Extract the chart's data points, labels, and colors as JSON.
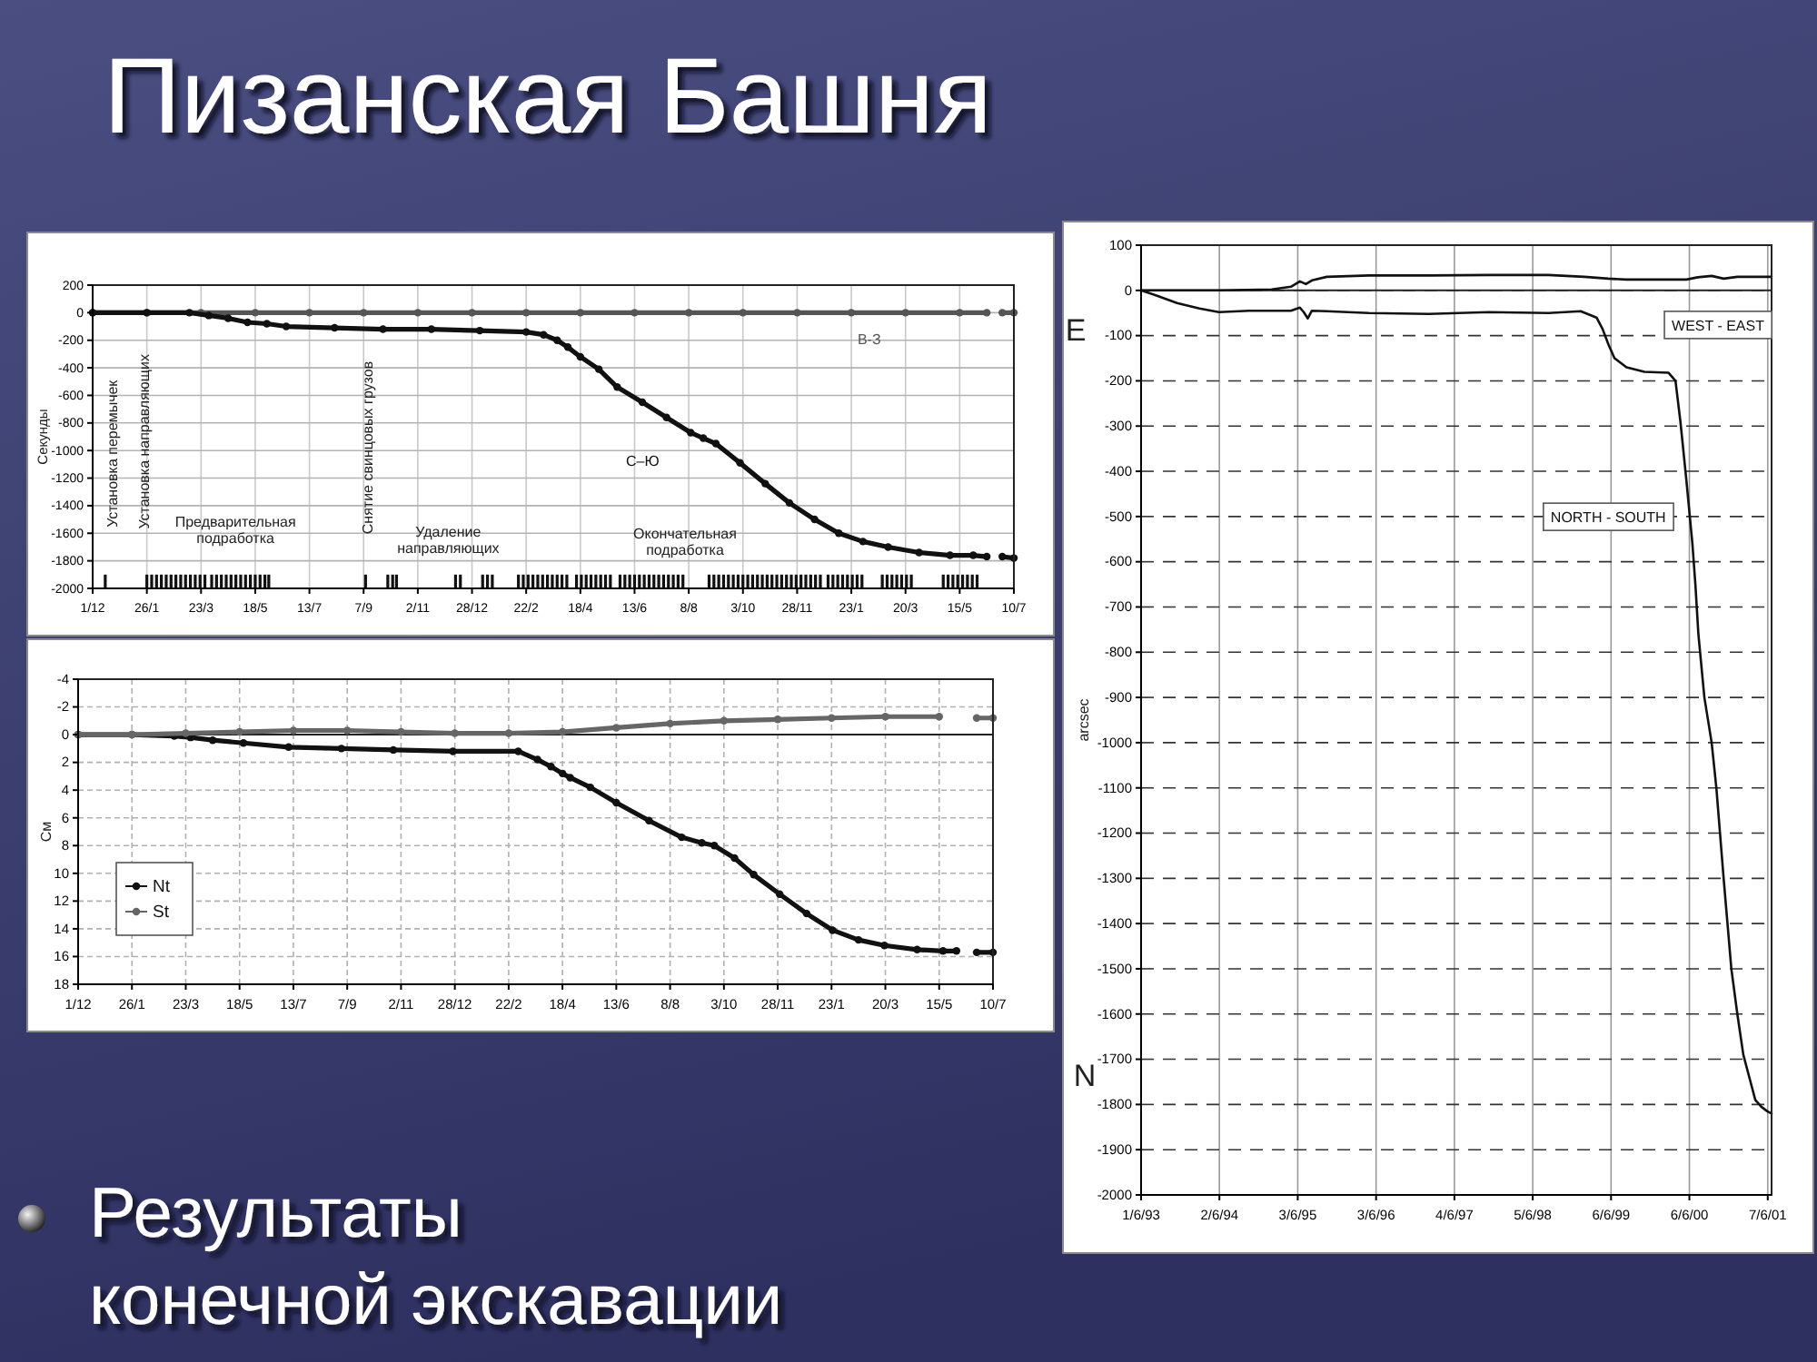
{
  "chart_data": [
    {
      "type": "line",
      "title": "Пизанская Башня",
      "ylabel": "Секунды",
      "annotations": [
        "Установка перемычек",
        "Установка направляющих",
        "Предварительная подработка",
        "Снятие свинцовых грузов",
        "Удаление направляющих",
        "Окончательная подработка"
      ],
      "xlim": [
        "1998-12-01",
        "2001-07-10"
      ],
      "xticks": [
        {
          "value": "1998-12-01",
          "label": "1/12"
        },
        {
          "value": "1999-01-26",
          "label": "26/1"
        },
        {
          "value": "1999-03-23",
          "label": "23/3"
        },
        {
          "value": "1999-05-18",
          "label": "18/5"
        },
        {
          "value": "1999-07-13",
          "label": "13/7"
        },
        {
          "value": "1999-09-07",
          "label": "7/9"
        },
        {
          "value": "1999-11-02",
          "label": "2/11"
        },
        {
          "value": "1999-12-28",
          "label": "28/12"
        },
        {
          "value": "2000-02-22",
          "label": "22/2"
        },
        {
          "value": "2000-04-18",
          "label": "18/4"
        },
        {
          "value": "2000-06-13",
          "label": "13/6"
        },
        {
          "value": "2000-08-08",
          "label": "8/8"
        },
        {
          "value": "2000-10-03",
          "label": "3/10"
        },
        {
          "value": "2000-11-28",
          "label": "28/11"
        },
        {
          "value": "2001-01-23",
          "label": "23/1"
        },
        {
          "value": "2001-03-20",
          "label": "20/3"
        },
        {
          "value": "2001-05-15",
          "label": "15/5"
        },
        {
          "value": "2001-07-10",
          "label": "10/7"
        }
      ],
      "ylim": [
        -2000,
        200
      ],
      "yticks": [
        -2000,
        -1800,
        -1600,
        -1400,
        -1200,
        -1000,
        -800,
        -600,
        -400,
        -200,
        0,
        200
      ],
      "grid": true,
      "marker": "circle",
      "series": [
        {
          "name": "В-З",
          "color": "#555555",
          "x": [
            "1998-12-01",
            "1999-01-26",
            "1999-03-23",
            "1999-05-18",
            "1999-07-13",
            "1999-09-07",
            "1999-11-02",
            "1999-12-28",
            "2000-02-22",
            "2000-04-18",
            "2000-06-13",
            "2000-08-08",
            "2000-10-03",
            "2000-11-28",
            "2001-01-23",
            "2001-03-20",
            "2001-05-15",
            "2001-06-12",
            "2001-06-18",
            "2001-06-28",
            "2001-07-10"
          ],
          "values": [
            0,
            0,
            0,
            0,
            0,
            0,
            0,
            0,
            0,
            0,
            0,
            0,
            0,
            0,
            0,
            0,
            0,
            0,
            null,
            0,
            0
          ]
        },
        {
          "name": "С–Ю",
          "color": "#111111",
          "x": [
            "1998-12-01",
            "1999-01-26",
            "1999-03-11",
            "1999-03-31",
            "1999-04-20",
            "1999-05-10",
            "1999-05-30",
            "1999-06-19",
            "1999-08-08",
            "1999-09-27",
            "1999-11-16",
            "2000-01-05",
            "2000-02-22",
            "2000-03-11",
            "2000-03-25",
            "2000-04-05",
            "2000-04-18",
            "2000-05-07",
            "2000-05-26",
            "2000-06-21",
            "2000-07-16",
            "2000-08-10",
            "2000-08-23",
            "2000-09-05",
            "2000-09-30",
            "2000-10-26",
            "2000-11-20",
            "2000-12-16",
            "2001-01-10",
            "2001-02-04",
            "2001-03-02",
            "2001-04-03",
            "2001-05-05",
            "2001-05-29",
            "2001-06-12",
            "2001-06-18",
            "2001-06-28",
            "2001-07-10"
          ],
          "values": [
            0,
            0,
            0,
            -20,
            -40,
            -70,
            -80,
            -100,
            -110,
            -120,
            -120,
            -130,
            -140,
            -160,
            -200,
            -250,
            -320,
            -410,
            -540,
            -650,
            -760,
            -870,
            -910,
            -950,
            -1090,
            -1240,
            -1380,
            -1500,
            -1600,
            -1660,
            -1700,
            -1740,
            -1760,
            -1760,
            -1770,
            null,
            -1770,
            -1780
          ]
        },
        {
          "type": "bar",
          "color": "#111111",
          "x": [
            "1998-12-14",
            "1999-01-26",
            "1999-01-31",
            "1999-02-05",
            "1999-02-10",
            "1999-02-15",
            "1999-02-20",
            "1999-02-25",
            "1999-03-02",
            "1999-03-07",
            "1999-03-12",
            "1999-03-17",
            "1999-03-22",
            "1999-03-27",
            "1999-04-03",
            "1999-04-08",
            "1999-04-13",
            "1999-04-18",
            "1999-04-23",
            "1999-04-28",
            "1999-05-03",
            "1999-05-08",
            "1999-05-13",
            "1999-05-18",
            "1999-05-23",
            "1999-05-28",
            "1999-06-01",
            "1999-09-09",
            "1999-10-02",
            "1999-10-07",
            "1999-10-11",
            "1999-12-11",
            "1999-12-16",
            "2000-01-08",
            "2000-01-13",
            "2000-01-18",
            "2000-02-14",
            "2000-02-19",
            "2000-02-24",
            "2000-02-29",
            "2000-03-05",
            "2000-03-10",
            "2000-03-15",
            "2000-03-20",
            "2000-03-25",
            "2000-03-30",
            "2000-04-04",
            "2000-04-14",
            "2000-04-19",
            "2000-04-24",
            "2000-04-29",
            "2000-05-04",
            "2000-05-09",
            "2000-05-14",
            "2000-05-19",
            "2000-05-29",
            "2000-06-03",
            "2000-06-08",
            "2000-06-13",
            "2000-06-18",
            "2000-06-23",
            "2000-06-28",
            "2000-07-03",
            "2000-07-08",
            "2000-07-13",
            "2000-07-18",
            "2000-07-23",
            "2000-07-28",
            "2000-08-02",
            "2000-08-29",
            "2000-09-03",
            "2000-09-08",
            "2000-09-13",
            "2000-09-18",
            "2000-09-23",
            "2000-09-28",
            "2000-10-03",
            "2000-10-08",
            "2000-10-13",
            "2000-10-18",
            "2000-10-23",
            "2000-10-28",
            "2000-11-02",
            "2000-11-07",
            "2000-11-12",
            "2000-11-17",
            "2000-11-22",
            "2000-11-27",
            "2000-12-02",
            "2000-12-07",
            "2000-12-12",
            "2000-12-17",
            "2000-12-22",
            "2000-12-30",
            "2001-01-04",
            "2001-01-09",
            "2001-01-14",
            "2001-01-19",
            "2001-01-24",
            "2001-01-29",
            "2001-02-03",
            "2001-02-24",
            "2001-03-01",
            "2001-03-06",
            "2001-03-11",
            "2001-03-16",
            "2001-03-21",
            "2001-03-26",
            "2001-04-28",
            "2001-05-03",
            "2001-05-08",
            "2001-05-13",
            "2001-05-18",
            "2001-05-23",
            "2001-05-28",
            "2001-06-02"
          ],
          "values": [
            100,
            100,
            100,
            100,
            100,
            100,
            100,
            100,
            100,
            100,
            100,
            100,
            100,
            100,
            100,
            100,
            100,
            100,
            100,
            100,
            100,
            100,
            100,
            100,
            100,
            100,
            100,
            100,
            100,
            100,
            100,
            100,
            100,
            100,
            100,
            100,
            100,
            100,
            100,
            100,
            100,
            100,
            100,
            100,
            100,
            100,
            100,
            100,
            100,
            100,
            100,
            100,
            100,
            100,
            100,
            100,
            100,
            100,
            100,
            100,
            100,
            100,
            100,
            100,
            100,
            100,
            100,
            100,
            100,
            100,
            100,
            100,
            100,
            100,
            100,
            100,
            100,
            100,
            100,
            100,
            100,
            100,
            100,
            100,
            100,
            100,
            100,
            100,
            100,
            100,
            100,
            100,
            100,
            100,
            100,
            100,
            100,
            100,
            100,
            100,
            100,
            100,
            100,
            100,
            100,
            100,
            100,
            100,
            100,
            100,
            100,
            100,
            100,
            100,
            100,
            100
          ],
          "base": [
            -2000,
            -2000,
            -2000,
            -2000,
            -2000,
            -2000,
            -2000,
            -2000,
            -2000,
            -2000,
            -2000,
            -2000,
            -2000,
            -2000,
            -2000,
            -2000,
            -2000,
            -2000,
            -2000,
            -2000,
            -2000,
            -2000,
            -2000,
            -2000,
            -2000,
            -2000,
            -2000,
            -2000,
            -2000,
            -2000,
            -2000,
            -2000,
            -2000,
            -2000,
            -2000,
            -2000,
            -2000,
            -2000,
            -2000,
            -2000,
            -2000,
            -2000,
            -2000,
            -2000,
            -2000,
            -2000,
            -2000,
            -2000,
            -2000,
            -2000,
            -2000,
            -2000,
            -2000,
            -2000,
            -2000,
            -2000,
            -2000,
            -2000,
            -2000,
            -2000,
            -2000,
            -2000,
            -2000,
            -2000,
            -2000,
            -2000,
            -2000,
            -2000,
            -2000,
            -2000,
            -2000,
            -2000,
            -2000,
            -2000,
            -2000,
            -2000,
            -2000,
            -2000,
            -2000,
            -2000,
            -2000,
            -2000,
            -2000,
            -2000,
            -2000,
            -2000,
            -2000,
            -2000,
            -2000,
            -2000,
            -2000,
            -2000,
            -2000,
            -2000,
            -2000,
            -2000,
            -2000,
            -2000,
            -2000,
            -2000,
            -2000,
            -2000,
            -2000,
            -2000,
            -2000,
            -2000,
            -2000,
            -2000,
            -2000,
            -2000,
            -2000,
            -2000,
            -2000,
            -2000,
            -2000,
            -2000
          ]
        }
      ]
    },
    {
      "type": "line",
      "ylabel": "См",
      "annotations": [
        "Результаты конечной экскавации"
      ],
      "xlim": [
        "1998-12-01",
        "2001-07-10"
      ],
      "xticks": [
        {
          "value": "1998-12-01",
          "label": "1/12"
        },
        {
          "value": "1999-01-26",
          "label": "26/1"
        },
        {
          "value": "1999-03-23",
          "label": "23/3"
        },
        {
          "value": "1999-05-18",
          "label": "18/5"
        },
        {
          "value": "1999-07-13",
          "label": "13/7"
        },
        {
          "value": "1999-09-07",
          "label": "7/9"
        },
        {
          "value": "1999-11-02",
          "label": "2/11"
        },
        {
          "value": "1999-12-28",
          "label": "28/12"
        },
        {
          "value": "2000-02-22",
          "label": "22/2"
        },
        {
          "value": "2000-04-18",
          "label": "18/4"
        },
        {
          "value": "2000-06-13",
          "label": "13/6"
        },
        {
          "value": "2000-08-08",
          "label": "8/8"
        },
        {
          "value": "2000-10-03",
          "label": "3/10"
        },
        {
          "value": "2000-11-28",
          "label": "28/11"
        },
        {
          "value": "2001-01-23",
          "label": "23/1"
        },
        {
          "value": "2001-03-20",
          "label": "20/3"
        },
        {
          "value": "2001-05-15",
          "label": "15/5"
        },
        {
          "value": "2001-07-10",
          "label": "10/7"
        }
      ],
      "ylim": [
        18,
        -4
      ],
      "yticks": [
        -4,
        -2,
        0,
        2,
        4,
        6,
        8,
        10,
        12,
        14,
        16,
        18
      ],
      "grid": true,
      "legend": "bottom left",
      "marker": "circle",
      "ref_lines": [
        {
          "axis": "y",
          "value": 0
        }
      ],
      "series": [
        {
          "name": "Nt",
          "color": "#111111",
          "x": [
            "1998-12-01",
            "1999-01-26",
            "1999-03-11",
            "1999-03-28",
            "1999-04-20",
            "1999-05-22",
            "1999-07-08",
            "1999-09-01",
            "1999-10-25",
            "1999-12-26",
            "2000-03-03",
            "2000-03-23",
            "2000-04-06",
            "2000-04-18",
            "2000-04-26",
            "2000-05-17",
            "2000-06-13",
            "2000-07-17",
            "2000-08-20",
            "2000-09-10",
            "2000-09-23",
            "2000-10-14",
            "2000-11-03",
            "2000-11-30",
            "2000-12-28",
            "2001-01-24",
            "2001-02-20",
            "2001-03-19",
            "2001-04-22",
            "2001-05-19",
            "2001-06-02",
            "2001-06-13",
            "2001-06-23",
            "2001-07-10"
          ],
          "values": [
            0,
            0,
            0.1,
            0.2,
            0.4,
            0.6,
            0.9,
            1.0,
            1.1,
            1.2,
            1.2,
            1.8,
            2.3,
            2.8,
            3.1,
            3.8,
            4.9,
            6.2,
            7.4,
            7.8,
            8.0,
            8.9,
            10.1,
            11.5,
            12.9,
            14.1,
            14.8,
            15.2,
            15.5,
            15.6,
            15.6,
            null,
            15.7,
            15.7
          ]
        },
        {
          "name": "St",
          "color": "#666666",
          "x": [
            "1998-12-01",
            "1999-01-26",
            "1999-03-23",
            "1999-05-18",
            "1999-07-13",
            "1999-09-07",
            "1999-11-02",
            "1999-12-28",
            "2000-02-22",
            "2000-04-18",
            "2000-06-13",
            "2000-08-08",
            "2000-10-03",
            "2000-11-28",
            "2001-01-23",
            "2001-03-20",
            "2001-05-15",
            "2001-06-13",
            "2001-06-23",
            "2001-07-10"
          ],
          "values": [
            0,
            0,
            -0.1,
            -0.2,
            -0.3,
            -0.3,
            -0.2,
            -0.1,
            -0.1,
            -0.2,
            -0.5,
            -0.8,
            -1.0,
            -1.1,
            -1.2,
            -1.3,
            -1.3,
            null,
            -1.2,
            -1.2
          ]
        }
      ]
    },
    {
      "type": "line",
      "ylabel": "arcsec",
      "annotations": [
        "E",
        "N"
      ],
      "xlim": [
        "1993-06-01",
        "2001-06-25"
      ],
      "xticks": [
        {
          "value": "1993-06-01",
          "label": "1/6/93"
        },
        {
          "value": "1994-06-02",
          "label": "2/6/94"
        },
        {
          "value": "1995-06-03",
          "label": "3/6/95"
        },
        {
          "value": "1996-06-03",
          "label": "3/6/96"
        },
        {
          "value": "1997-06-04",
          "label": "4/6/97"
        },
        {
          "value": "1998-06-05",
          "label": "5/6/98"
        },
        {
          "value": "1999-06-06",
          "label": "6/6/99"
        },
        {
          "value": "2000-06-06",
          "label": "6/6/00"
        },
        {
          "value": "2001-06-07",
          "label": "7/6/01"
        }
      ],
      "ylim": [
        -2000,
        100
      ],
      "yticks": [
        -2000,
        -1900,
        -1800,
        -1700,
        -1600,
        -1500,
        -1400,
        -1300,
        -1200,
        -1100,
        -1000,
        -900,
        -800,
        -700,
        -600,
        -500,
        -400,
        -300,
        -200,
        -100,
        0,
        100
      ],
      "grid": true,
      "ref_lines": [
        {
          "axis": "y",
          "value": 0
        }
      ],
      "series": [
        {
          "name": "WEST - EAST",
          "color": "#111111",
          "x": [
            "1993-06-01",
            "1994-05-31",
            "1995-02-01",
            "1995-05-02",
            "1995-06-13",
            "1995-07-11",
            "1995-08-08",
            "1995-10-17",
            "1996-04-30",
            "1997-02-04",
            "1997-11-11",
            "1998-08-18",
            "1999-02-02",
            "1999-05-25",
            "1999-08-17",
            "2000-02-29",
            "2000-05-23",
            "2000-07-15",
            "2000-09-18",
            "2000-11-13",
            "2001-01-16",
            "2001-06-25"
          ],
          "values": [
            0,
            0,
            2,
            8,
            20,
            14,
            22,
            30,
            33,
            33,
            34,
            34,
            30,
            26,
            24,
            24,
            24,
            29,
            32,
            26,
            30,
            30
          ]
        },
        {
          "name": "NORTH - SOUTH",
          "color": "#111111",
          "x": [
            "1993-06-01",
            "1993-08-15",
            "1993-11-16",
            "1994-03-01",
            "1994-05-31",
            "1994-10-18",
            "1995-05-02",
            "1995-06-13",
            "1995-07-01",
            "1995-07-20",
            "1995-08-08",
            "1995-10-17",
            "1996-04-30",
            "1997-02-04",
            "1997-11-11",
            "1998-08-18",
            "1999-01-15",
            "1999-03-30",
            "1999-04-27",
            "1999-05-25",
            "1999-06-22",
            "1999-08-17",
            "1999-11-09",
            "2000-02-29",
            "2000-04-02",
            "2000-04-25",
            "2000-05-23",
            "2000-06-20",
            "2000-07-04",
            "2000-07-18",
            "2000-08-15",
            "2000-09-18",
            "2000-10-10",
            "2000-11-13",
            "2000-12-19",
            "2001-01-16",
            "2001-02-13",
            "2001-03-13",
            "2001-04-10",
            "2001-05-08",
            "2001-06-05",
            "2001-06-25"
          ],
          "values": [
            0,
            -12,
            -28,
            -40,
            -48,
            -45,
            -45,
            -38,
            -48,
            -62,
            -45,
            -46,
            -50,
            -52,
            -48,
            -50,
            -46,
            -60,
            -85,
            -120,
            -150,
            -170,
            -180,
            -182,
            -200,
            -290,
            -420,
            -560,
            -650,
            -760,
            -900,
            -1000,
            -1100,
            -1300,
            -1500,
            -1600,
            -1690,
            -1740,
            -1790,
            -1805,
            -1815,
            -1820
          ]
        }
      ]
    }
  ]
}
